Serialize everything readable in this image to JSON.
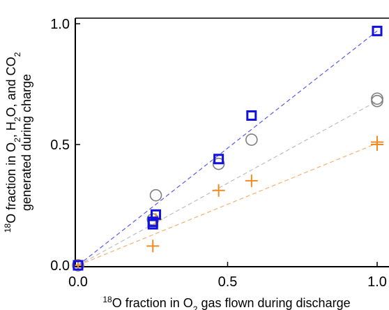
{
  "chart_data": {
    "type": "scatter",
    "xlabel_parts": {
      "sup": "18",
      "pre": "O fraction in O",
      "sub": "2",
      "post": " gas flown during discharge"
    },
    "ylabel_line1_parts": {
      "sup": "18",
      "a": "O fraction in O",
      "s1": "2",
      "b": ", H",
      "s2": "2",
      "c": "O, and CO",
      "s3": "2"
    },
    "ylabel_line2": "generated during charge",
    "xlim": [
      0.0,
      1.0
    ],
    "ylim": [
      0.0,
      1.0
    ],
    "x_ticks": [
      0.0,
      0.5,
      1.0
    ],
    "y_ticks": [
      0.0,
      0.5,
      1.0
    ],
    "x_tick_labels": [
      "0.0",
      "0.5",
      "1.0"
    ],
    "y_tick_labels": [
      "0.0",
      "0.5",
      "1.0"
    ],
    "grid": false,
    "series": [
      {
        "marker": "square",
        "color": "#1010e0",
        "points": [
          [
            0.0,
            0.0
          ],
          [
            0.25,
            0.17
          ],
          [
            0.25,
            0.18
          ],
          [
            0.26,
            0.21
          ],
          [
            0.47,
            0.44
          ],
          [
            0.58,
            0.62
          ],
          [
            1.0,
            0.97
          ]
        ],
        "fit_line": [
          [
            0.0,
            0.0
          ],
          [
            1.0,
            0.97
          ]
        ],
        "fit_color": "#5a5af0"
      },
      {
        "marker": "circle",
        "color": "#7f7f7f",
        "points": [
          [
            0.0,
            0.0
          ],
          [
            0.25,
            0.19
          ],
          [
            0.26,
            0.29
          ],
          [
            0.47,
            0.42
          ],
          [
            0.58,
            0.52
          ],
          [
            1.0,
            0.68
          ],
          [
            1.0,
            0.69
          ]
        ],
        "fit_line": [
          [
            0.0,
            0.0
          ],
          [
            1.0,
            0.68
          ]
        ],
        "fit_color": "#bdbdbd"
      },
      {
        "marker": "plus",
        "color": "#f08a24",
        "points": [
          [
            0.0,
            0.0
          ],
          [
            0.25,
            0.08
          ],
          [
            0.26,
            0.19
          ],
          [
            0.47,
            0.31
          ],
          [
            0.58,
            0.35
          ],
          [
            1.0,
            0.5
          ],
          [
            1.0,
            0.51
          ]
        ],
        "fit_line": [
          [
            0.0,
            0.0
          ],
          [
            1.0,
            0.505
          ]
        ],
        "fit_color": "#f5b070"
      }
    ]
  }
}
